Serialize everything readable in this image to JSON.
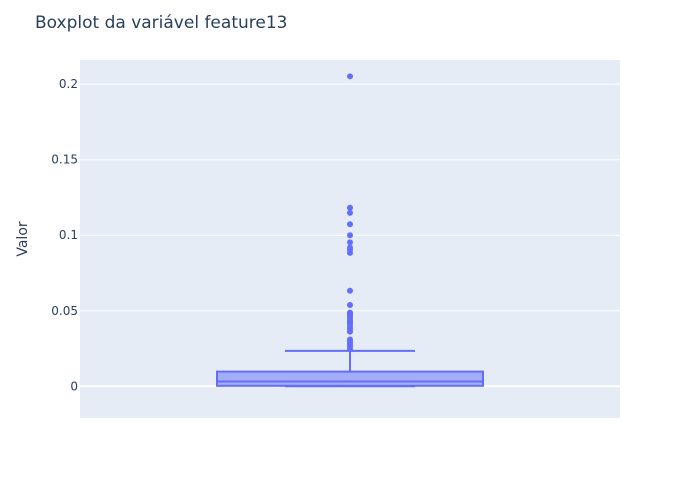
{
  "chart_data": {
    "type": "box",
    "title": "Boxplot da variável feature13",
    "xlabel": "",
    "ylabel": "Valor",
    "ylim": [
      -0.021,
      0.216
    ],
    "yticks": [
      0,
      0.05,
      0.1,
      0.15,
      0.2
    ],
    "ytick_labels": [
      "0",
      "0.05",
      "0.1",
      "0.15",
      "0.2"
    ],
    "grid": true,
    "box": {
      "min": 0,
      "q1": 0.0003,
      "median": 0.0032,
      "q3": 0.0097,
      "whisker_high": 0.0234,
      "outliers": [
        0.0245,
        0.0262,
        0.0275,
        0.0288,
        0.0298,
        0.031,
        0.0362,
        0.0378,
        0.0395,
        0.0412,
        0.0425,
        0.0438,
        0.0452,
        0.0465,
        0.0478,
        0.0488,
        0.0538,
        0.0632,
        0.0883,
        0.0903,
        0.0918,
        0.0953,
        0.1,
        0.1073,
        0.1148,
        0.1182,
        0.2052
      ]
    },
    "colors": {
      "box_line": "#636efa",
      "box_fill": "rgba(99,110,250,0.5)",
      "plot_bg": "#e5ecf6",
      "grid": "#ffffff",
      "text": "#2a3f5f"
    }
  }
}
